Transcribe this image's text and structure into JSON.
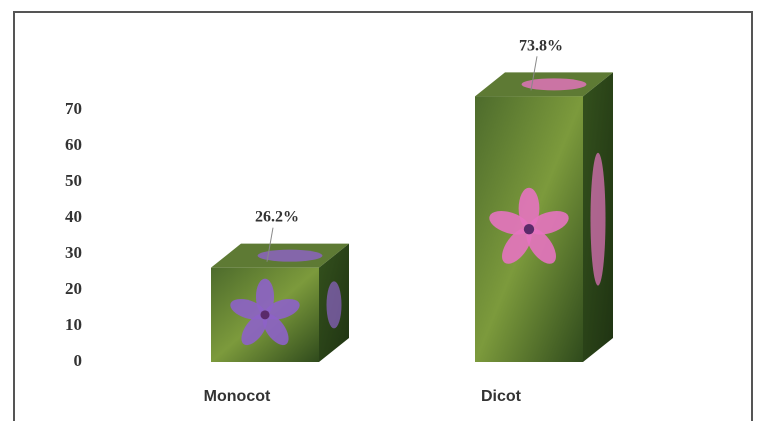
{
  "chart_data": {
    "type": "bar3d",
    "categories": [
      "Monocot",
      "Dicot"
    ],
    "values": [
      26.2,
      73.8
    ],
    "value_labels": [
      "26.2%",
      "73.8%"
    ],
    "colors": [
      "#8d62c8",
      "#e673c0"
    ],
    "ylim": [
      0,
      80
    ],
    "yticks": [
      0,
      10,
      20,
      30,
      40,
      50,
      60,
      70
    ]
  }
}
